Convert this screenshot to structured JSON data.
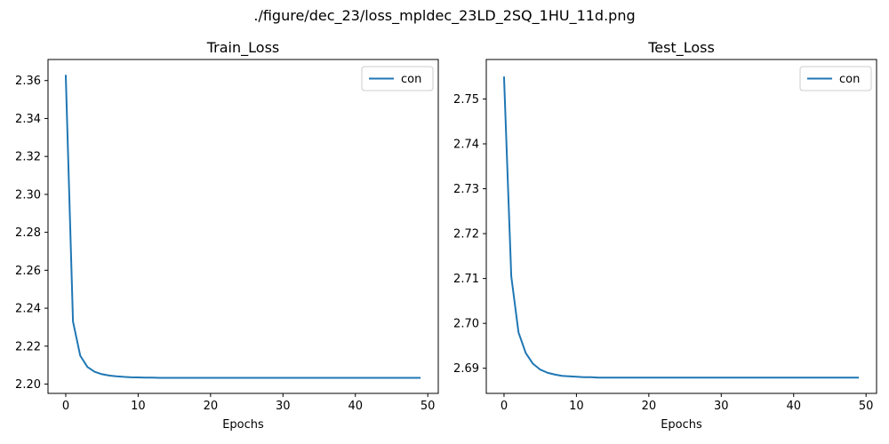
{
  "figure": {
    "suptitle": "./figure/dec_23/loss_mpldec_23LD_2SQ_1HU_11d.png"
  },
  "chart_data": [
    {
      "type": "line",
      "title": "Train_Loss",
      "xlabel": "Epochs",
      "ylabel": "",
      "xlim": [
        -2.45,
        51.45
      ],
      "ylim": [
        2.1951,
        2.3711
      ],
      "xticks": [
        0,
        10,
        20,
        30,
        40,
        50
      ],
      "xtick_labels": [
        "0",
        "10",
        "20",
        "30",
        "40",
        "50"
      ],
      "yticks": [
        2.2,
        2.22,
        2.24,
        2.26,
        2.28,
        2.3,
        2.32,
        2.34,
        2.36
      ],
      "ytick_labels": [
        "2.20",
        "2.22",
        "2.24",
        "2.26",
        "2.28",
        "2.30",
        "2.32",
        "2.34",
        "2.36"
      ],
      "grid": false,
      "legend_position": "upper right",
      "series": [
        {
          "name": "con",
          "color": "#1f77b4",
          "x": [
            0,
            1,
            2,
            3,
            4,
            5,
            6,
            7,
            8,
            9,
            10,
            11,
            12,
            13,
            14,
            15,
            16,
            17,
            18,
            19,
            20,
            21,
            22,
            23,
            24,
            25,
            26,
            27,
            28,
            29,
            30,
            31,
            32,
            33,
            34,
            35,
            36,
            37,
            38,
            39,
            40,
            41,
            42,
            43,
            44,
            45,
            46,
            47,
            48,
            49
          ],
          "values": [
            2.363,
            2.233,
            2.215,
            2.209,
            2.2065,
            2.2052,
            2.2045,
            2.2041,
            2.2038,
            2.2036,
            2.2035,
            2.2034,
            2.2034,
            2.2033,
            2.2033,
            2.2033,
            2.2033,
            2.2033,
            2.2033,
            2.2033,
            2.2033,
            2.2033,
            2.2033,
            2.2033,
            2.2033,
            2.2033,
            2.2033,
            2.2033,
            2.2033,
            2.2033,
            2.2033,
            2.2033,
            2.2033,
            2.2033,
            2.2033,
            2.2033,
            2.2033,
            2.2033,
            2.2033,
            2.2033,
            2.2033,
            2.2033,
            2.2033,
            2.2033,
            2.2033,
            2.2033,
            2.2033,
            2.2033,
            2.2033,
            2.2033
          ]
        }
      ]
    },
    {
      "type": "line",
      "title": "Test_Loss",
      "xlabel": "Epochs",
      "ylabel": "",
      "xlim": [
        -2.45,
        51.45
      ],
      "ylim": [
        2.6844,
        2.7588
      ],
      "xticks": [
        0,
        10,
        20,
        30,
        40,
        50
      ],
      "xtick_labels": [
        "0",
        "10",
        "20",
        "30",
        "40",
        "50"
      ],
      "yticks": [
        2.69,
        2.7,
        2.71,
        2.72,
        2.73,
        2.74,
        2.75
      ],
      "ytick_labels": [
        "2.69",
        "2.70",
        "2.71",
        "2.72",
        "2.73",
        "2.74",
        "2.75"
      ],
      "grid": false,
      "legend_position": "upper right",
      "series": [
        {
          "name": "con",
          "color": "#1f77b4",
          "x": [
            0,
            1,
            2,
            3,
            4,
            5,
            6,
            7,
            8,
            9,
            10,
            11,
            12,
            13,
            14,
            15,
            16,
            17,
            18,
            19,
            20,
            21,
            22,
            23,
            24,
            25,
            26,
            27,
            28,
            29,
            30,
            31,
            32,
            33,
            34,
            35,
            36,
            37,
            38,
            39,
            40,
            41,
            42,
            43,
            44,
            45,
            46,
            47,
            48,
            49
          ],
          "values": [
            2.755,
            2.7105,
            2.698,
            2.6934,
            2.691,
            2.6897,
            2.689,
            2.6886,
            2.6883,
            2.6882,
            2.6881,
            2.688,
            2.688,
            2.6879,
            2.6879,
            2.6879,
            2.6879,
            2.6879,
            2.6879,
            2.6879,
            2.6879,
            2.6879,
            2.6879,
            2.6879,
            2.6879,
            2.6879,
            2.6879,
            2.6879,
            2.6879,
            2.6879,
            2.6879,
            2.6879,
            2.6879,
            2.6879,
            2.6879,
            2.6879,
            2.6879,
            2.6879,
            2.6879,
            2.6879,
            2.6879,
            2.6879,
            2.6879,
            2.6879,
            2.6879,
            2.6879,
            2.6879,
            2.6879,
            2.6879,
            2.6879
          ]
        }
      ]
    }
  ]
}
